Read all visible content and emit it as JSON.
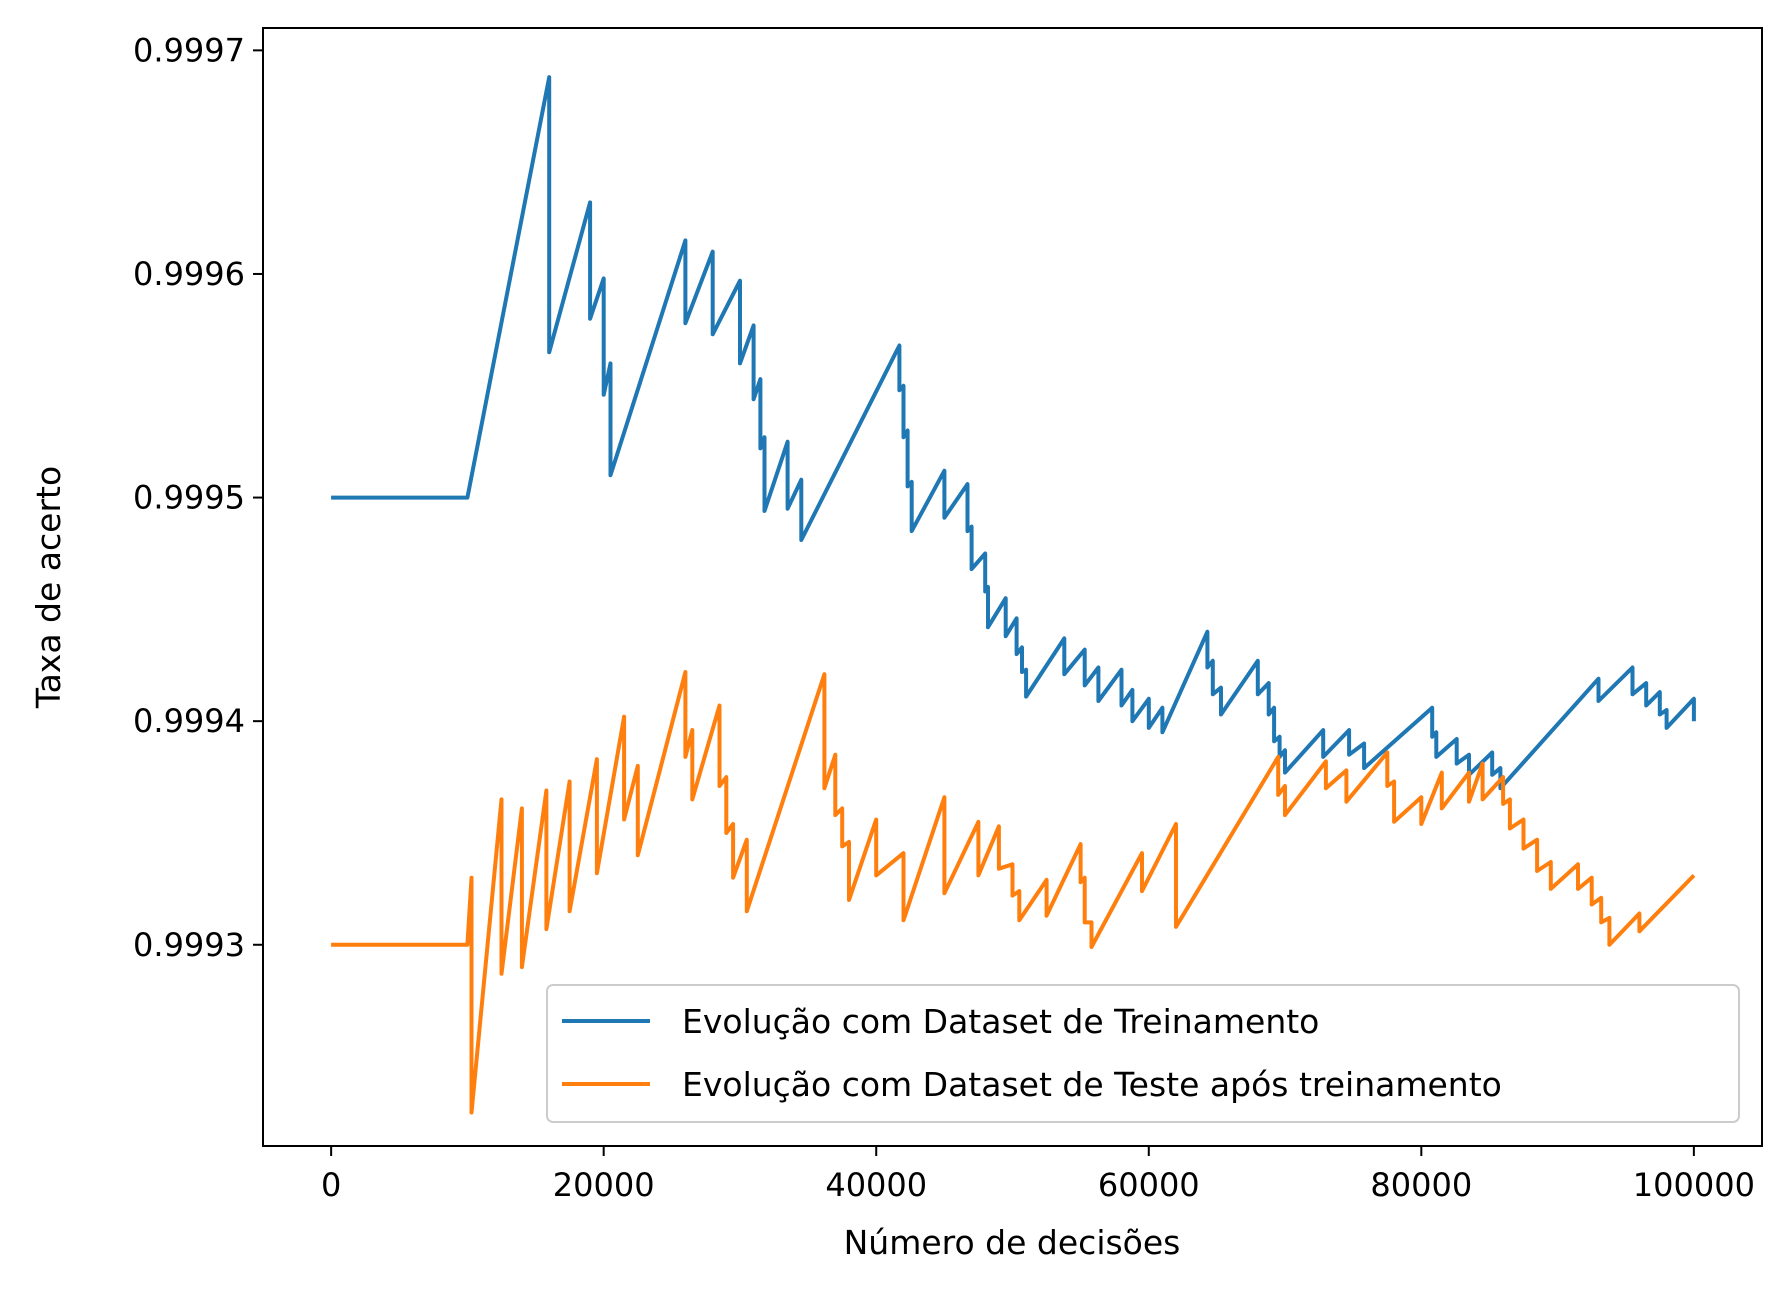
{
  "chart_data": {
    "type": "line",
    "xlabel": "Número de decisões",
    "ylabel": "Taxa de acerto",
    "xlim": [
      -5000,
      105000
    ],
    "ylim": [
      0.99921,
      0.99971
    ],
    "xticks": [
      0,
      20000,
      40000,
      60000,
      80000,
      100000
    ],
    "xtick_labels": [
      "0",
      "20000",
      "40000",
      "60000",
      "80000",
      "100000"
    ],
    "yticks": [
      0.9993,
      0.9994,
      0.9995,
      0.9996,
      0.9997
    ],
    "ytick_labels": [
      "0.9993",
      "0.9994",
      "0.9995",
      "0.9996",
      "0.9997"
    ],
    "grid": false,
    "legend_position": "lower-right",
    "series": [
      {
        "name": "Evolução com Dataset de Treinamento",
        "color": "#1f77b4",
        "points": [
          [
            0,
            0.9995
          ],
          [
            10000,
            0.9995
          ],
          [
            16000,
            0.999688
          ],
          [
            16000,
            0.999627
          ],
          [
            16000,
            0.999565
          ],
          [
            19000,
            0.999632
          ],
          [
            19000,
            0.99958
          ],
          [
            20000,
            0.999598
          ],
          [
            20000,
            0.999546
          ],
          [
            20500,
            0.99956
          ],
          [
            20500,
            0.99951
          ],
          [
            26000,
            0.999615
          ],
          [
            26000,
            0.999578
          ],
          [
            28000,
            0.99961
          ],
          [
            28000,
            0.999573
          ],
          [
            30000,
            0.999597
          ],
          [
            30000,
            0.99956
          ],
          [
            31000,
            0.999577
          ],
          [
            31000,
            0.999544
          ],
          [
            31500,
            0.999553
          ],
          [
            31500,
            0.999522
          ],
          [
            31800,
            0.999527
          ],
          [
            31800,
            0.999494
          ],
          [
            33500,
            0.999525
          ],
          [
            33500,
            0.999495
          ],
          [
            34500,
            0.999508
          ],
          [
            34500,
            0.999481
          ],
          [
            41700,
            0.999568
          ],
          [
            41700,
            0.999548
          ],
          [
            42000,
            0.99955
          ],
          [
            42000,
            0.999527
          ],
          [
            42300,
            0.99953
          ],
          [
            42300,
            0.999505
          ],
          [
            42600,
            0.999507
          ],
          [
            42600,
            0.999485
          ],
          [
            45000,
            0.999512
          ],
          [
            45000,
            0.999491
          ],
          [
            46700,
            0.999506
          ],
          [
            46700,
            0.999485
          ],
          [
            47000,
            0.999487
          ],
          [
            47000,
            0.999468
          ],
          [
            48000,
            0.999475
          ],
          [
            48000,
            0.999458
          ],
          [
            48200,
            0.99946
          ],
          [
            48200,
            0.999442
          ],
          [
            49500,
            0.999455
          ],
          [
            49500,
            0.999438
          ],
          [
            50300,
            0.999446
          ],
          [
            50300,
            0.99943
          ],
          [
            50700,
            0.999433
          ],
          [
            50700,
            0.999422
          ],
          [
            51000,
            0.999423
          ],
          [
            51000,
            0.999411
          ],
          [
            53800,
            0.999437
          ],
          [
            53800,
            0.999421
          ],
          [
            55300,
            0.999432
          ],
          [
            55300,
            0.999416
          ],
          [
            56300,
            0.999424
          ],
          [
            56300,
            0.999409
          ],
          [
            58000,
            0.999423
          ],
          [
            58000,
            0.999407
          ],
          [
            58800,
            0.999414
          ],
          [
            58800,
            0.9994
          ],
          [
            60000,
            0.99941
          ],
          [
            60000,
            0.999397
          ],
          [
            61000,
            0.999406
          ],
          [
            61000,
            0.999395
          ],
          [
            64300,
            0.99944
          ],
          [
            64300,
            0.999424
          ],
          [
            64700,
            0.999427
          ],
          [
            64700,
            0.999412
          ],
          [
            65300,
            0.999415
          ],
          [
            65300,
            0.999403
          ],
          [
            68000,
            0.999427
          ],
          [
            68000,
            0.999412
          ],
          [
            68800,
            0.999417
          ],
          [
            68800,
            0.999403
          ],
          [
            69200,
            0.999406
          ],
          [
            69200,
            0.999391
          ],
          [
            69600,
            0.999393
          ],
          [
            69600,
            0.999384
          ],
          [
            70000,
            0.999387
          ],
          [
            70000,
            0.999377
          ],
          [
            72800,
            0.999396
          ],
          [
            72800,
            0.999384
          ],
          [
            74700,
            0.999396
          ],
          [
            74700,
            0.999385
          ],
          [
            75800,
            0.99939
          ],
          [
            75800,
            0.999379
          ],
          [
            80800,
            0.999406
          ],
          [
            80800,
            0.999393
          ],
          [
            81100,
            0.999395
          ],
          [
            81100,
            0.999384
          ],
          [
            82600,
            0.999392
          ],
          [
            82600,
            0.999381
          ],
          [
            83500,
            0.999385
          ],
          [
            83500,
            0.999376
          ],
          [
            85200,
            0.999386
          ],
          [
            85200,
            0.999376
          ],
          [
            85800,
            0.999379
          ],
          [
            85800,
            0.99937
          ],
          [
            93000,
            0.999419
          ],
          [
            93000,
            0.999409
          ],
          [
            95500,
            0.999424
          ],
          [
            95500,
            0.999412
          ],
          [
            96500,
            0.999417
          ],
          [
            96500,
            0.999407
          ],
          [
            97500,
            0.999413
          ],
          [
            97500,
            0.999403
          ],
          [
            98000,
            0.999405
          ],
          [
            98000,
            0.999397
          ],
          [
            100000,
            0.99941
          ],
          [
            100000,
            0.9994
          ]
        ]
      },
      {
        "name": "Evolução com Dataset de Teste após treinamento",
        "color": "#ff7f0e",
        "points": [
          [
            0,
            0.9993
          ],
          [
            10000,
            0.9993
          ],
          [
            10300,
            0.99933
          ],
          [
            10300,
            0.999225
          ],
          [
            12500,
            0.999365
          ],
          [
            12500,
            0.999287
          ],
          [
            14000,
            0.999361
          ],
          [
            14000,
            0.99929
          ],
          [
            15800,
            0.999369
          ],
          [
            15800,
            0.999307
          ],
          [
            17500,
            0.999373
          ],
          [
            17500,
            0.999315
          ],
          [
            19500,
            0.999383
          ],
          [
            19500,
            0.999332
          ],
          [
            21500,
            0.999402
          ],
          [
            21500,
            0.999356
          ],
          [
            22500,
            0.99938
          ],
          [
            22500,
            0.99934
          ],
          [
            26000,
            0.999422
          ],
          [
            26000,
            0.999384
          ],
          [
            26500,
            0.999396
          ],
          [
            26500,
            0.999365
          ],
          [
            28500,
            0.999407
          ],
          [
            28500,
            0.999371
          ],
          [
            29000,
            0.999375
          ],
          [
            29000,
            0.99935
          ],
          [
            29500,
            0.999354
          ],
          [
            29500,
            0.99933
          ],
          [
            30500,
            0.999347
          ],
          [
            30500,
            0.999315
          ],
          [
            36200,
            0.999421
          ],
          [
            36200,
            0.99937
          ],
          [
            37000,
            0.999385
          ],
          [
            37000,
            0.999358
          ],
          [
            37500,
            0.999361
          ],
          [
            37500,
            0.999344
          ],
          [
            38000,
            0.999346
          ],
          [
            38000,
            0.99932
          ],
          [
            40000,
            0.999356
          ],
          [
            40000,
            0.999331
          ],
          [
            42000,
            0.999341
          ],
          [
            42000,
            0.999311
          ],
          [
            45000,
            0.999366
          ],
          [
            45000,
            0.999323
          ],
          [
            47500,
            0.999355
          ],
          [
            47500,
            0.999331
          ],
          [
            49000,
            0.999353
          ],
          [
            49000,
            0.999334
          ],
          [
            50000,
            0.999336
          ],
          [
            50000,
            0.999322
          ],
          [
            50500,
            0.999324
          ],
          [
            50500,
            0.999311
          ],
          [
            52500,
            0.999329
          ],
          [
            52500,
            0.999313
          ],
          [
            55000,
            0.999345
          ],
          [
            55000,
            0.999328
          ],
          [
            55300,
            0.99933
          ],
          [
            55300,
            0.99931
          ],
          [
            55800,
            0.99931
          ],
          [
            55800,
            0.999299
          ],
          [
            59500,
            0.999341
          ],
          [
            59500,
            0.999324
          ],
          [
            62000,
            0.999354
          ],
          [
            62000,
            0.999308
          ],
          [
            69500,
            0.999384
          ],
          [
            69500,
            0.999367
          ],
          [
            70000,
            0.999371
          ],
          [
            70000,
            0.999358
          ],
          [
            73000,
            0.999382
          ],
          [
            73000,
            0.99937
          ],
          [
            74500,
            0.999378
          ],
          [
            74500,
            0.999364
          ],
          [
            77500,
            0.999386
          ],
          [
            77500,
            0.999371
          ],
          [
            78000,
            0.999373
          ],
          [
            78000,
            0.999355
          ],
          [
            80000,
            0.999366
          ],
          [
            80000,
            0.999354
          ],
          [
            81500,
            0.999377
          ],
          [
            81500,
            0.999361
          ],
          [
            83500,
            0.999377
          ],
          [
            83500,
            0.999364
          ],
          [
            84500,
            0.999381
          ],
          [
            84500,
            0.999365
          ],
          [
            86000,
            0.999375
          ],
          [
            86000,
            0.999363
          ],
          [
            86500,
            0.999365
          ],
          [
            86500,
            0.999352
          ],
          [
            87500,
            0.999356
          ],
          [
            87500,
            0.999343
          ],
          [
            88500,
            0.999347
          ],
          [
            88500,
            0.999333
          ],
          [
            89500,
            0.999337
          ],
          [
            89500,
            0.999325
          ],
          [
            91500,
            0.999336
          ],
          [
            91500,
            0.999325
          ],
          [
            92500,
            0.99933
          ],
          [
            92500,
            0.999318
          ],
          [
            93200,
            0.999321
          ],
          [
            93200,
            0.99931
          ],
          [
            93800,
            0.999312
          ],
          [
            93800,
            0.9993
          ],
          [
            96000,
            0.999314
          ],
          [
            96000,
            0.999306
          ],
          [
            100000,
            0.999331
          ]
        ]
      }
    ]
  }
}
